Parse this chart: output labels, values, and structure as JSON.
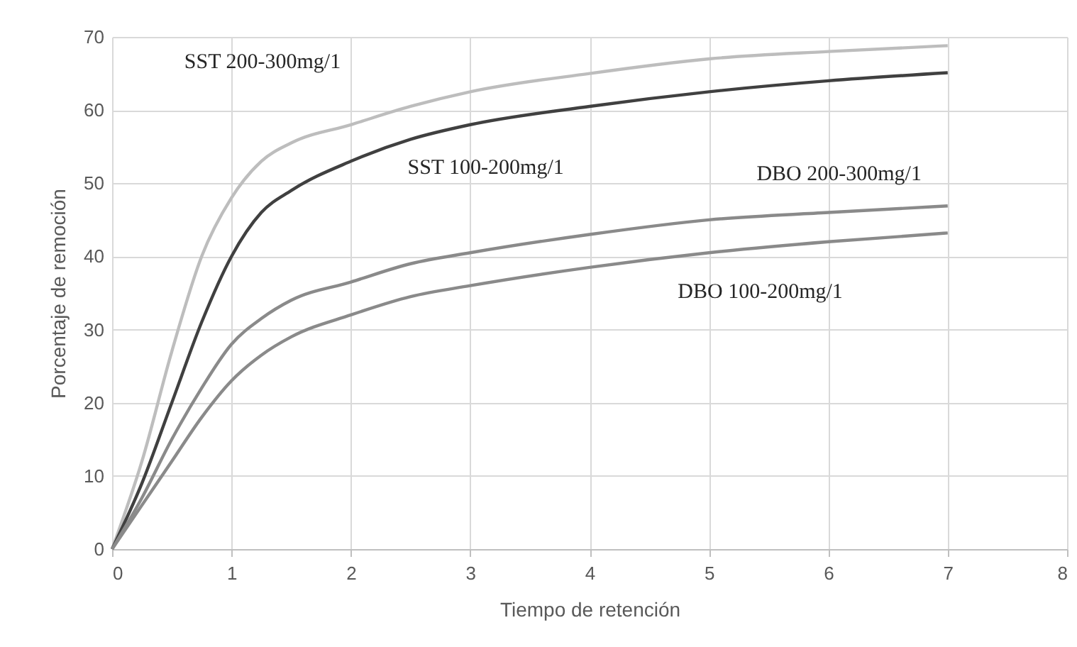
{
  "chart_data": {
    "type": "line",
    "xlabel": "Tiempo de retención",
    "ylabel": "Porcentaje de remoción",
    "xlim": [
      0,
      8
    ],
    "xticks": [
      0,
      1,
      2,
      3,
      4,
      5,
      6,
      7,
      8
    ],
    "ylim": [
      0,
      70
    ],
    "yticks": [
      0,
      10,
      20,
      30,
      40,
      50,
      60,
      70
    ],
    "grid": true,
    "marker": "none",
    "line_style": "solid",
    "x": [
      0,
      0.25,
      0.5,
      0.75,
      1,
      1.25,
      1.5,
      2,
      2.5,
      3,
      4,
      5,
      6,
      7
    ],
    "series": [
      {
        "name": "SST 200-300mg/1",
        "color": "#bdbdbd",
        "values": [
          0,
          12,
          27,
          40,
          48,
          53,
          55.5,
          58,
          60.5,
          62.5,
          65,
          67,
          68,
          68.8
        ]
      },
      {
        "name": "SST 100-200mg/1",
        "color": "#404040",
        "values": [
          0,
          9,
          20,
          31,
          40,
          46,
          49,
          53,
          56,
          58,
          60.5,
          62.5,
          64,
          65.1
        ]
      },
      {
        "name": "DBO 200-300mg/1",
        "color": "#8a8a8a",
        "values": [
          0,
          7,
          15,
          22,
          28,
          31.5,
          34,
          36.5,
          39,
          40.5,
          43,
          45,
          46,
          46.9
        ]
      },
      {
        "name": "DBO 100-200mg/1",
        "color": "#8a8a8a",
        "values": [
          0,
          6,
          12,
          18,
          23,
          26.5,
          29,
          32,
          34.5,
          36,
          38.5,
          40.5,
          42,
          43.2
        ]
      }
    ]
  }
}
